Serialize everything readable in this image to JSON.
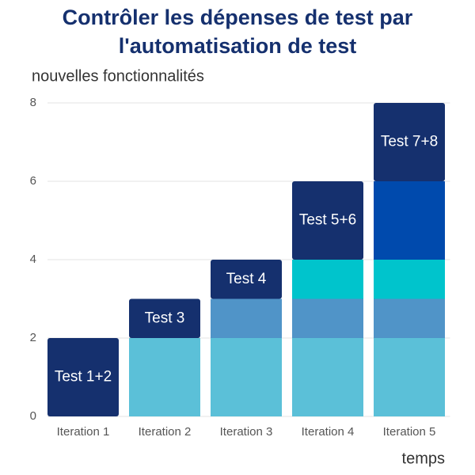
{
  "chart_data": {
    "type": "stacked_bar",
    "title": "Contrôler les dépenses de test par l'automatisation de test",
    "y_label": "nouvelles fonctionnalités",
    "x_label": "temps",
    "categories": [
      "Iteration 1",
      "Iteration 2",
      "Iteration 3",
      "Iteration 4",
      "Iteration 5"
    ],
    "series": [
      {
        "name": "Test 1+2",
        "values": [
          2,
          2,
          2,
          2,
          2
        ],
        "colors": [
          "#15306e",
          "#5bc0d8",
          "#5bc0d8",
          "#5bc0d8",
          "#5bc0d8"
        ]
      },
      {
        "name": "Test 3",
        "values": [
          null,
          1,
          1,
          1,
          1
        ],
        "colors": [
          null,
          "#15306e",
          "#5094c8",
          "#5094c8",
          "#5094c8"
        ]
      },
      {
        "name": "Test 4",
        "values": [
          null,
          null,
          1,
          1,
          1
        ],
        "colors": [
          null,
          null,
          "#15306e",
          "#00c4cc",
          "#00c4cc"
        ]
      },
      {
        "name": "Test 5+6",
        "values": [
          null,
          null,
          null,
          2,
          2
        ],
        "colors": [
          null,
          null,
          null,
          "#15306e",
          "#004aad"
        ]
      },
      {
        "name": "Test 7+8",
        "values": [
          null,
          null,
          null,
          null,
          2
        ],
        "colors": [
          null,
          null,
          null,
          null,
          "#15306e"
        ]
      }
    ],
    "ylim": [
      0,
      8
    ],
    "yticks": [
      0,
      2,
      4,
      6,
      8
    ],
    "grid": true
  }
}
